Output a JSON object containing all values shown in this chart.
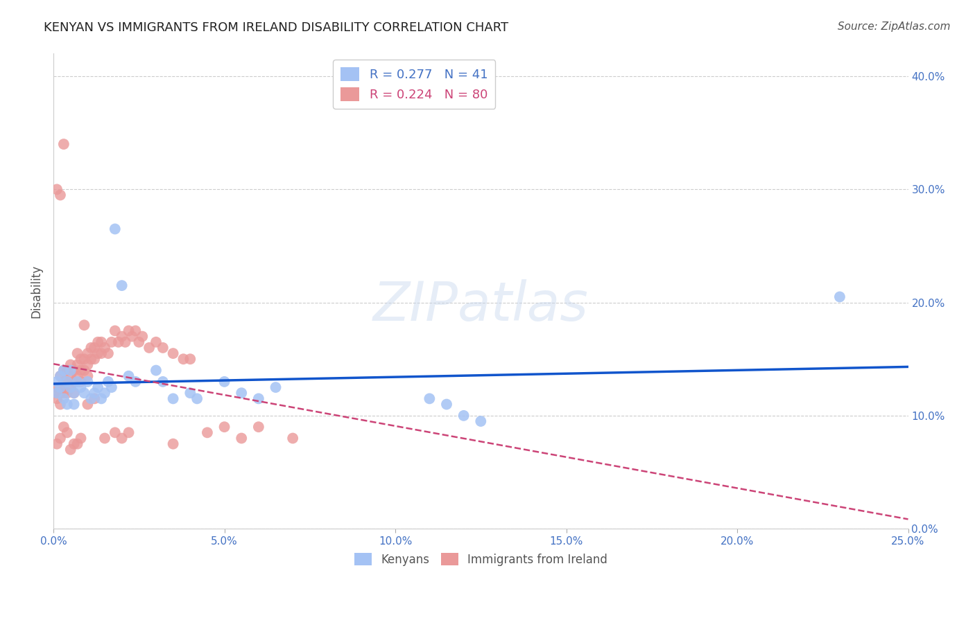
{
  "title": "KENYAN VS IMMIGRANTS FROM IRELAND DISABILITY CORRELATION CHART",
  "source": "Source: ZipAtlas.com",
  "ylabel": "Disability",
  "xlim": [
    0.0,
    0.25
  ],
  "ylim": [
    0.0,
    0.42
  ],
  "yticks": [
    0.0,
    0.1,
    0.2,
    0.3,
    0.4
  ],
  "xticks": [
    0.0,
    0.05,
    0.1,
    0.15,
    0.2,
    0.25
  ],
  "kenyan_R": 0.277,
  "kenyan_N": 41,
  "ireland_R": 0.224,
  "ireland_N": 80,
  "kenyan_color": "#a4c2f4",
  "ireland_color": "#ea9999",
  "kenyan_line_color": "#1155cc",
  "ireland_line_color": "#cc4477",
  "background_color": "#ffffff",
  "kenyan_points_x": [
    0.001,
    0.001,
    0.002,
    0.002,
    0.003,
    0.003,
    0.004,
    0.004,
    0.005,
    0.005,
    0.006,
    0.006,
    0.007,
    0.008,
    0.009,
    0.01,
    0.011,
    0.012,
    0.013,
    0.014,
    0.015,
    0.016,
    0.017,
    0.018,
    0.02,
    0.022,
    0.024,
    0.03,
    0.032,
    0.035,
    0.04,
    0.042,
    0.05,
    0.055,
    0.06,
    0.065,
    0.11,
    0.115,
    0.12,
    0.125,
    0.23
  ],
  "kenyan_points_y": [
    0.13,
    0.12,
    0.135,
    0.125,
    0.14,
    0.115,
    0.13,
    0.11,
    0.14,
    0.125,
    0.12,
    0.11,
    0.13,
    0.125,
    0.12,
    0.13,
    0.115,
    0.12,
    0.125,
    0.115,
    0.12,
    0.13,
    0.125,
    0.265,
    0.215,
    0.135,
    0.13,
    0.14,
    0.13,
    0.115,
    0.12,
    0.115,
    0.13,
    0.12,
    0.115,
    0.125,
    0.115,
    0.11,
    0.1,
    0.095,
    0.205
  ],
  "ireland_points_x": [
    0.001,
    0.001,
    0.001,
    0.002,
    0.002,
    0.002,
    0.002,
    0.003,
    0.003,
    0.003,
    0.004,
    0.004,
    0.004,
    0.005,
    0.005,
    0.005,
    0.006,
    0.006,
    0.006,
    0.007,
    0.007,
    0.007,
    0.008,
    0.008,
    0.008,
    0.009,
    0.009,
    0.01,
    0.01,
    0.01,
    0.011,
    0.011,
    0.012,
    0.012,
    0.013,
    0.013,
    0.014,
    0.014,
    0.015,
    0.016,
    0.017,
    0.018,
    0.019,
    0.02,
    0.021,
    0.022,
    0.023,
    0.024,
    0.025,
    0.026,
    0.028,
    0.03,
    0.032,
    0.035,
    0.038,
    0.04,
    0.045,
    0.05,
    0.06,
    0.07,
    0.001,
    0.001,
    0.002,
    0.002,
    0.003,
    0.003,
    0.004,
    0.005,
    0.006,
    0.007,
    0.008,
    0.009,
    0.01,
    0.012,
    0.015,
    0.018,
    0.02,
    0.022,
    0.035,
    0.055
  ],
  "ireland_points_y": [
    0.125,
    0.12,
    0.115,
    0.135,
    0.125,
    0.12,
    0.11,
    0.14,
    0.13,
    0.12,
    0.14,
    0.13,
    0.12,
    0.145,
    0.135,
    0.125,
    0.14,
    0.13,
    0.12,
    0.155,
    0.145,
    0.135,
    0.15,
    0.14,
    0.13,
    0.15,
    0.14,
    0.155,
    0.145,
    0.135,
    0.16,
    0.15,
    0.16,
    0.15,
    0.165,
    0.155,
    0.165,
    0.155,
    0.16,
    0.155,
    0.165,
    0.175,
    0.165,
    0.17,
    0.165,
    0.175,
    0.17,
    0.175,
    0.165,
    0.17,
    0.16,
    0.165,
    0.16,
    0.155,
    0.15,
    0.15,
    0.085,
    0.09,
    0.09,
    0.08,
    0.3,
    0.075,
    0.295,
    0.08,
    0.34,
    0.09,
    0.085,
    0.07,
    0.075,
    0.075,
    0.08,
    0.18,
    0.11,
    0.115,
    0.08,
    0.085,
    0.08,
    0.085,
    0.075,
    0.08
  ]
}
